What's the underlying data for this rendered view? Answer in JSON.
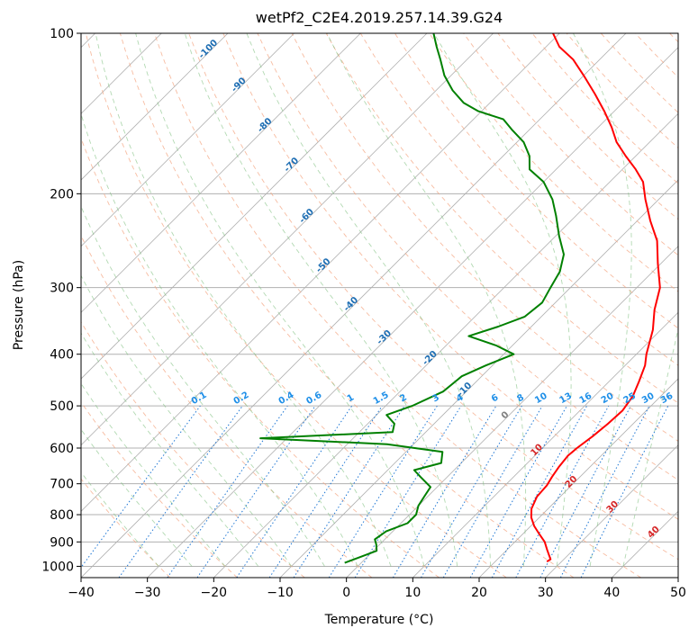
{
  "chart_data": {
    "type": "line",
    "title": "wetPf2_C2E4.2019.257.14.39.G24",
    "xlabel": "Temperature (°C)",
    "ylabel": "Pressure (hPa)",
    "xlim": [
      -40,
      50
    ],
    "ylim_pressure": [
      1050,
      100
    ],
    "y_scale": "log",
    "x_ticks": [
      "−40",
      "−30",
      "−20",
      "−10",
      "0",
      "10",
      "20",
      "30",
      "40",
      "50"
    ],
    "y_ticks": [
      {
        "p": 100,
        "label": "100"
      },
      {
        "p": 200,
        "label": "200"
      },
      {
        "p": 300,
        "label": "300"
      },
      {
        "p": 400,
        "label": "400"
      },
      {
        "p": 500,
        "label": "500"
      },
      {
        "p": 600,
        "label": "600"
      },
      {
        "p": 700,
        "label": "700"
      },
      {
        "p": 800,
        "label": "800"
      },
      {
        "p": 900,
        "label": "900"
      },
      {
        "p": 1000,
        "label": "1000"
      }
    ],
    "grid": true,
    "skew": "skew-T log-P",
    "isotherm_labels": [
      "-100",
      "-90",
      "-80",
      "-70",
      "-60",
      "-50",
      "-40",
      "-30",
      "-20",
      "-10"
    ],
    "mixing_ratio_labels": [
      "0.1",
      "0.2",
      "0.4",
      "0.6",
      "1",
      "1.5",
      "2",
      "3",
      "4",
      "6",
      "8",
      "10",
      "13",
      "16",
      "20",
      "25",
      "30",
      "36"
    ],
    "zero_isotherm_label": "0",
    "warm_isotherm_labels": [
      "10",
      "20",
      "30",
      "40"
    ],
    "series": [
      {
        "name": "",
        "color": "#ff0000",
        "points": [
          [
            27.8,
            980
          ],
          [
            28.0,
            970
          ],
          [
            27.0,
            950
          ],
          [
            26.0,
            930
          ],
          [
            24.5,
            900
          ],
          [
            22.5,
            870
          ],
          [
            20.5,
            840
          ],
          [
            18.8,
            810
          ],
          [
            17.5,
            780
          ],
          [
            16.5,
            740
          ],
          [
            16.3,
            705
          ],
          [
            15.8,
            680
          ],
          [
            15.3,
            650
          ],
          [
            15.0,
            620
          ],
          [
            15.2,
            600
          ],
          [
            15.8,
            570
          ],
          [
            16.2,
            540
          ],
          [
            16.4,
            510
          ],
          [
            15.8,
            480
          ],
          [
            14.5,
            450
          ],
          [
            13.0,
            420
          ],
          [
            11.5,
            400
          ],
          [
            8.8,
            360
          ],
          [
            6.0,
            330
          ],
          [
            3.5,
            300
          ],
          [
            -0.5,
            270
          ],
          [
            -4.0,
            245
          ],
          [
            -8.0,
            225
          ],
          [
            -12.0,
            205
          ],
          [
            -15.0,
            190
          ],
          [
            -18.0,
            180
          ],
          [
            -21.5,
            170
          ],
          [
            -25.0,
            160
          ],
          [
            -28.0,
            150
          ],
          [
            -31.5,
            140
          ],
          [
            -35.5,
            130
          ],
          [
            -40.0,
            120
          ],
          [
            -44.0,
            112
          ],
          [
            -48.0,
            106
          ],
          [
            -51.0,
            100
          ]
        ]
      },
      {
        "name": "",
        "color": "#008000",
        "points": [
          [
            -2.5,
            985
          ],
          [
            -1.0,
            960
          ],
          [
            0.5,
            935
          ],
          [
            -0.5,
            910
          ],
          [
            -1.5,
            890
          ],
          [
            -1.0,
            860
          ],
          [
            1.0,
            830
          ],
          [
            1.0,
            800
          ],
          [
            0.0,
            770
          ],
          [
            -0.5,
            740
          ],
          [
            -1.0,
            710
          ],
          [
            -4.0,
            680
          ],
          [
            -6.0,
            660
          ],
          [
            -3.0,
            640
          ],
          [
            -4.5,
            610
          ],
          [
            -14.0,
            590
          ],
          [
            -34.0,
            575
          ],
          [
            -15.0,
            560
          ],
          [
            -16.0,
            540
          ],
          [
            -18.5,
            520
          ],
          [
            -16.0,
            500
          ],
          [
            -13.5,
            470
          ],
          [
            -13.0,
            440
          ],
          [
            -11.0,
            420
          ],
          [
            -8.5,
            400
          ],
          [
            -12.5,
            385
          ],
          [
            -18.0,
            370
          ],
          [
            -15.0,
            355
          ],
          [
            -12.5,
            340
          ],
          [
            -12.0,
            320
          ],
          [
            -13.0,
            300
          ],
          [
            -14.0,
            280
          ],
          [
            -16.0,
            260
          ],
          [
            -19.5,
            240
          ],
          [
            -23.0,
            220
          ],
          [
            -26.0,
            205
          ],
          [
            -30.0,
            190
          ],
          [
            -34.0,
            180
          ],
          [
            -36.0,
            170
          ],
          [
            -39.0,
            160
          ],
          [
            -42.5,
            152
          ],
          [
            -45.5,
            145
          ],
          [
            -50.5,
            140
          ],
          [
            -54.0,
            135
          ],
          [
            -57.5,
            128
          ],
          [
            -61.0,
            120
          ],
          [
            -64.0,
            112
          ],
          [
            -66.5,
            106
          ],
          [
            -69.0,
            100
          ]
        ]
      }
    ]
  }
}
